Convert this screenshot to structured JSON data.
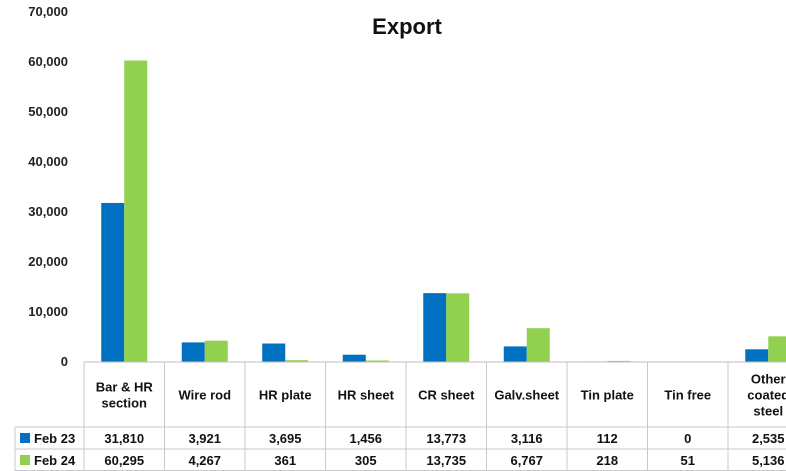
{
  "chart_data": {
    "type": "bar",
    "title": "Export",
    "xlabel": "",
    "ylabel": "",
    "ylim": [
      0,
      70000
    ],
    "yticks": [
      "0",
      "10,000",
      "20,000",
      "30,000",
      "40,000",
      "50,000",
      "60,000",
      "70,000"
    ],
    "grid": false,
    "legend": "data-table-left",
    "categories": [
      [
        "Bar & HR",
        "section"
      ],
      [
        "Wire rod"
      ],
      [
        "HR plate"
      ],
      [
        "HR sheet"
      ],
      [
        "CR sheet"
      ],
      [
        "Galv.sheet"
      ],
      [
        "Tin plate"
      ],
      [
        "Tin free"
      ],
      [
        "Other",
        "coated",
        "steel"
      ]
    ],
    "series": [
      {
        "name": "Feb 23",
        "color": "#0070c0",
        "values": [
          31810,
          3921,
          3695,
          1456,
          13773,
          3116,
          112,
          0,
          2535
        ],
        "labels": [
          "31,810",
          "3,921",
          "3,695",
          "1,456",
          "13,773",
          "3,116",
          "112",
          "0",
          "2,535"
        ]
      },
      {
        "name": "Feb 24",
        "color": "#92d050",
        "values": [
          60295,
          4267,
          361,
          305,
          13735,
          6767,
          218,
          51,
          5136
        ],
        "labels": [
          "60,295",
          "4,267",
          "361",
          "305",
          "13,735",
          "6,767",
          "218",
          "51",
          "5,136"
        ]
      }
    ]
  }
}
